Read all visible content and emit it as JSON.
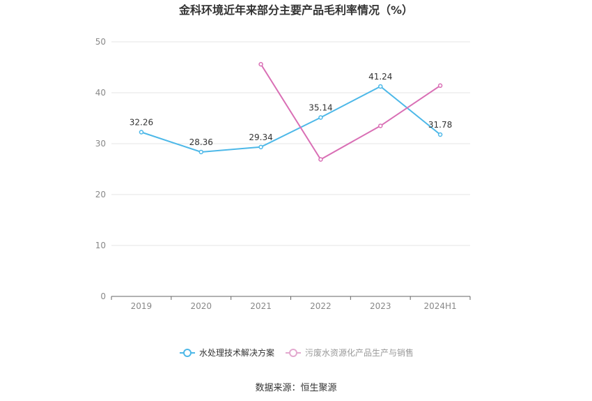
{
  "chart_data": {
    "type": "line",
    "title": "金科环境近年来部分主要产品毛利率情况（%）",
    "categories": [
      "2019",
      "2020",
      "2021",
      "2022",
      "2023",
      "2024H1"
    ],
    "ylim": [
      0,
      50
    ],
    "yticks": [
      0,
      10,
      20,
      30,
      40,
      50
    ],
    "grid": true,
    "legend_position": "bottom",
    "series": [
      {
        "name": "水处理技术解决方案",
        "color": "#4db8e8",
        "values": [
          32.26,
          28.36,
          29.34,
          35.14,
          41.24,
          31.78
        ],
        "labels": [
          "32.26",
          "28.36",
          "29.34",
          "35.14",
          "41.24",
          "31.78"
        ],
        "show_labels": true
      },
      {
        "name": "污废水资源化产品生产与销售",
        "color": "#d96fb5",
        "values": [
          null,
          null,
          45.6,
          26.9,
          33.5,
          41.4
        ],
        "show_labels": false
      }
    ],
    "source": "数据来源：恒生聚源"
  }
}
